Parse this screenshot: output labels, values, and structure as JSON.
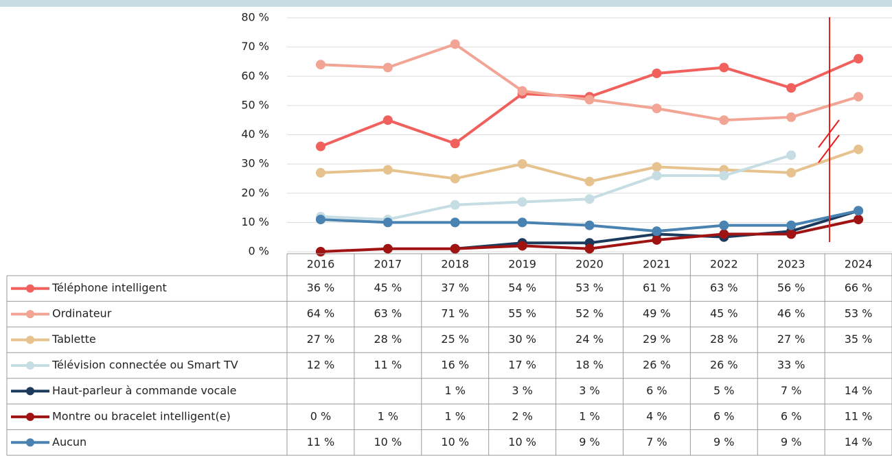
{
  "chart_data": {
    "type": "line",
    "categories": [
      "2016",
      "2017",
      "2018",
      "2019",
      "2020",
      "2021",
      "2022",
      "2023",
      "2024"
    ],
    "ylim": [
      0,
      80
    ],
    "yticks": [
      {
        "value": 0,
        "label": "0 %"
      },
      {
        "value": 10,
        "label": "10 %"
      },
      {
        "value": 20,
        "label": "20 %"
      },
      {
        "value": 30,
        "label": "30 %"
      },
      {
        "value": 40,
        "label": "40 %"
      },
      {
        "value": 50,
        "label": "50 %"
      },
      {
        "value": 60,
        "label": "60 %"
      },
      {
        "value": 70,
        "label": "70 %"
      },
      {
        "value": 80,
        "label": "80 %"
      }
    ],
    "grid": true,
    "series": [
      {
        "name": "Téléphone intelligent",
        "color": "#f0605d",
        "values": [
          36,
          45,
          37,
          54,
          53,
          61,
          63,
          56,
          66
        ],
        "value_labels": [
          "36 %",
          "45 %",
          "37 %",
          "54 %",
          "53 %",
          "61 %",
          "63 %",
          "56 %",
          "66 %"
        ]
      },
      {
        "name": "Ordinateur",
        "color": "#f2a595",
        "values": [
          64,
          63,
          71,
          55,
          52,
          49,
          45,
          46,
          53
        ],
        "value_labels": [
          "64 %",
          "63 %",
          "71 %",
          "55 %",
          "52 %",
          "49 %",
          "45 %",
          "46 %",
          "53 %"
        ]
      },
      {
        "name": "Tablette",
        "color": "#e6c28e",
        "values": [
          27,
          28,
          25,
          30,
          24,
          29,
          28,
          27,
          35
        ],
        "value_labels": [
          "27 %",
          "28 %",
          "25 %",
          "30 %",
          "24 %",
          "29 %",
          "28 %",
          "27 %",
          "35 %"
        ]
      },
      {
        "name": "Télévision connectée ou Smart TV",
        "color": "#c6dde3",
        "values": [
          12,
          11,
          16,
          17,
          18,
          26,
          26,
          33,
          null
        ],
        "value_labels": [
          "12 %",
          "11 %",
          "16 %",
          "17 %",
          "18 %",
          "26 %",
          "26 %",
          "33 %",
          null
        ]
      },
      {
        "name": "Haut-parleur à commande vocale",
        "color": "#1b3a5c",
        "values": [
          null,
          null,
          1,
          3,
          3,
          6,
          5,
          7,
          14
        ],
        "value_labels": [
          null,
          null,
          "1 %",
          "3 %",
          "3 %",
          "6 %",
          "5 %",
          "7 %",
          "14 %"
        ]
      },
      {
        "name": "Montre ou bracelet intelligent(e)",
        "color": "#a01313",
        "values": [
          0,
          1,
          1,
          2,
          1,
          4,
          6,
          6,
          11
        ],
        "value_labels": [
          "0 %",
          "1 %",
          "1 %",
          "2 %",
          "1 %",
          "4 %",
          "6 %",
          "6 %",
          "11 %"
        ]
      },
      {
        "name": "Aucun",
        "color": "#4a83b1",
        "values": [
          11,
          10,
          10,
          10,
          9,
          7,
          9,
          9,
          14
        ],
        "value_labels": [
          "11 %",
          "10 %",
          "10 %",
          "10 %",
          "9 %",
          "7 %",
          "9 %",
          "9 %",
          "14 %"
        ]
      }
    ]
  }
}
